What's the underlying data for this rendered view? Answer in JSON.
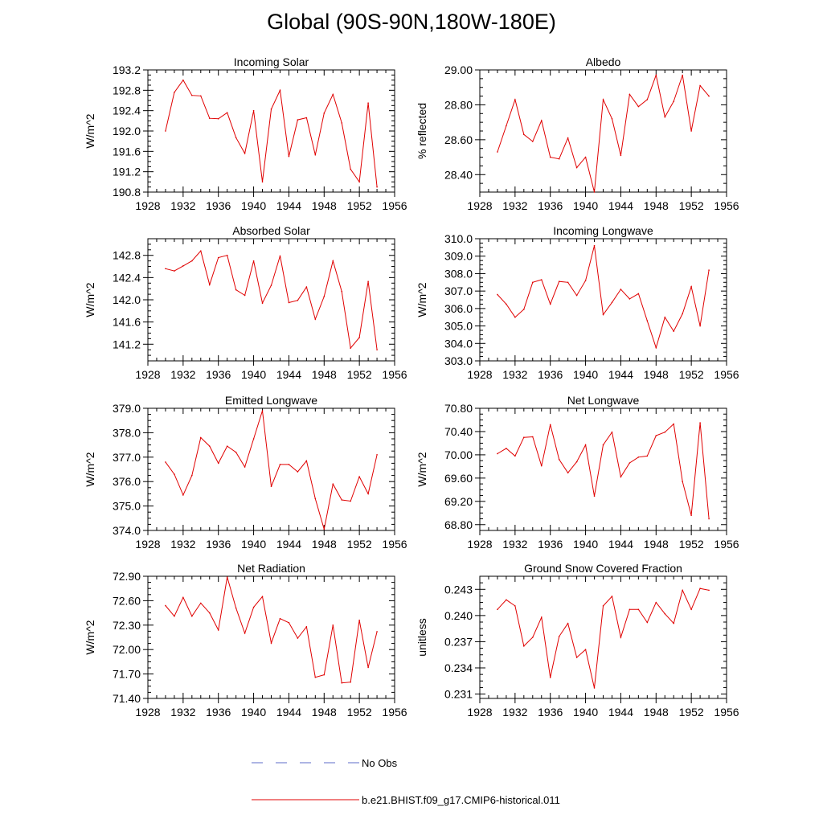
{
  "title": "Global (90S-90N,180W-180E)",
  "legend": {
    "obs_label": "No Obs",
    "obs_color": "#5c6bc8",
    "model_label": "b.e21.BHIST.f09_g17.CMIP6-historical.011",
    "model_color": "#e00000"
  },
  "chart_data": [
    {
      "type": "line",
      "title": "Incoming Solar",
      "ylabel": "W/m^2",
      "x": [
        1930,
        1931,
        1932,
        1933,
        1934,
        1935,
        1936,
        1937,
        1938,
        1939,
        1940,
        1941,
        1942,
        1943,
        1944,
        1945,
        1946,
        1947,
        1948,
        1949,
        1950,
        1951,
        1952,
        1953,
        1954
      ],
      "series": [
        {
          "values": [
            192.0,
            192.76,
            193.0,
            192.7,
            192.69,
            192.25,
            192.24,
            192.36,
            191.87,
            191.56,
            192.4,
            191.0,
            192.43,
            192.8,
            191.5,
            192.22,
            192.26,
            191.53,
            192.35,
            192.72,
            192.16,
            191.25,
            191.0,
            192.55,
            190.9
          ]
        }
      ],
      "xlim": [
        1928,
        1956
      ],
      "ylim": [
        190.8,
        193.2
      ],
      "xticks": [
        "1928",
        "1932",
        "1936",
        "1940",
        "1944",
        "1948",
        "1952",
        "1956"
      ],
      "yticks": [
        "190.8",
        "191.2",
        "191.6",
        "192.0",
        "192.4",
        "192.8",
        "193.2"
      ]
    },
    {
      "type": "line",
      "title": "Albedo",
      "ylabel": "% reflected",
      "x": [
        1930,
        1931,
        1932,
        1933,
        1934,
        1935,
        1936,
        1937,
        1938,
        1939,
        1940,
        1941,
        1942,
        1943,
        1944,
        1945,
        1946,
        1947,
        1948,
        1949,
        1950,
        1951,
        1952,
        1953,
        1954
      ],
      "series": [
        {
          "values": [
            28.53,
            28.68,
            28.83,
            28.63,
            28.59,
            28.71,
            28.5,
            28.49,
            28.61,
            28.44,
            28.5,
            28.3,
            28.83,
            28.72,
            28.51,
            28.86,
            28.79,
            28.83,
            28.97,
            28.73,
            28.82,
            28.97,
            28.65,
            28.91,
            28.85
          ]
        }
      ],
      "xlim": [
        1928,
        1956
      ],
      "ylim": [
        28.3,
        29.0
      ],
      "xticks": [
        "1928",
        "1932",
        "1936",
        "1940",
        "1944",
        "1948",
        "1952",
        "1956"
      ],
      "yticks": [
        "28.40",
        "28.60",
        "28.80",
        "29.00"
      ]
    },
    {
      "type": "line",
      "title": "Absorbed Solar",
      "ylabel": "W/m^2",
      "x": [
        1930,
        1931,
        1932,
        1933,
        1934,
        1935,
        1936,
        1937,
        1938,
        1939,
        1940,
        1941,
        1942,
        1943,
        1944,
        1945,
        1946,
        1947,
        1948,
        1949,
        1950,
        1951,
        1952,
        1953,
        1954
      ],
      "series": [
        {
          "values": [
            142.56,
            142.52,
            142.61,
            142.7,
            142.88,
            142.27,
            142.76,
            142.8,
            142.18,
            142.08,
            142.7,
            141.94,
            142.26,
            142.79,
            141.95,
            141.99,
            142.23,
            141.65,
            142.06,
            142.7,
            142.15,
            141.13,
            141.32,
            142.33,
            141.1
          ]
        }
      ],
      "xlim": [
        1928,
        1956
      ],
      "ylim": [
        140.9,
        143.1
      ],
      "xticks": [
        "1928",
        "1932",
        "1936",
        "1940",
        "1944",
        "1948",
        "1952",
        "1956"
      ],
      "yticks": [
        "141.2",
        "141.6",
        "142.0",
        "142.4",
        "142.8"
      ]
    },
    {
      "type": "line",
      "title": "Incoming Longwave",
      "ylabel": "W/m^2",
      "x": [
        1930,
        1931,
        1932,
        1933,
        1934,
        1935,
        1936,
        1937,
        1938,
        1939,
        1940,
        1941,
        1942,
        1943,
        1944,
        1945,
        1946,
        1947,
        1948,
        1949,
        1950,
        1951,
        1952,
        1953,
        1954
      ],
      "series": [
        {
          "values": [
            306.8,
            306.25,
            305.5,
            305.95,
            307.5,
            307.65,
            306.25,
            307.55,
            307.5,
            306.75,
            307.6,
            309.6,
            305.65,
            306.35,
            307.1,
            306.55,
            306.85,
            305.3,
            303.75,
            305.5,
            304.7,
            305.7,
            307.25,
            305.0,
            308.2
          ]
        }
      ],
      "xlim": [
        1928,
        1956
      ],
      "ylim": [
        303.0,
        310.0
      ],
      "xticks": [
        "1928",
        "1932",
        "1936",
        "1940",
        "1944",
        "1948",
        "1952",
        "1956"
      ],
      "yticks": [
        "303.0",
        "304.0",
        "305.0",
        "306.0",
        "307.0",
        "308.0",
        "309.0",
        "310.0"
      ]
    },
    {
      "type": "line",
      "title": "Emitted Longwave",
      "ylabel": "W/m^2",
      "x": [
        1930,
        1931,
        1932,
        1933,
        1934,
        1935,
        1936,
        1937,
        1938,
        1939,
        1940,
        1941,
        1942,
        1943,
        1944,
        1945,
        1946,
        1947,
        1948,
        1949,
        1950,
        1951,
        1952,
        1953,
        1954
      ],
      "series": [
        {
          "values": [
            376.8,
            376.3,
            375.45,
            376.25,
            377.8,
            377.45,
            376.75,
            377.45,
            377.2,
            376.6,
            377.75,
            378.9,
            375.8,
            376.7,
            376.7,
            376.4,
            376.85,
            375.3,
            374.05,
            375.9,
            375.25,
            375.2,
            376.2,
            375.5,
            377.1
          ]
        }
      ],
      "xlim": [
        1928,
        1956
      ],
      "ylim": [
        374.0,
        379.0
      ],
      "xticks": [
        "1928",
        "1932",
        "1936",
        "1940",
        "1944",
        "1948",
        "1952",
        "1956"
      ],
      "yticks": [
        "374.0",
        "375.0",
        "376.0",
        "377.0",
        "378.0",
        "379.0"
      ]
    },
    {
      "type": "line",
      "title": "Net Longwave",
      "ylabel": "W/m^2",
      "x": [
        1930,
        1931,
        1932,
        1933,
        1934,
        1935,
        1936,
        1937,
        1938,
        1939,
        1940,
        1941,
        1942,
        1943,
        1944,
        1945,
        1946,
        1947,
        1948,
        1949,
        1950,
        1951,
        1952,
        1953,
        1954
      ],
      "series": [
        {
          "values": [
            70.02,
            70.11,
            69.98,
            70.3,
            70.31,
            69.81,
            70.52,
            69.92,
            69.69,
            69.88,
            70.17,
            69.29,
            70.17,
            70.39,
            69.62,
            69.86,
            69.96,
            69.98,
            70.33,
            70.39,
            70.53,
            69.54,
            68.96,
            70.55,
            68.9
          ]
        }
      ],
      "xlim": [
        1928,
        1956
      ],
      "ylim": [
        68.7,
        70.8
      ],
      "xticks": [
        "1928",
        "1932",
        "1936",
        "1940",
        "1944",
        "1948",
        "1952",
        "1956"
      ],
      "yticks": [
        "68.80",
        "69.20",
        "69.60",
        "70.00",
        "70.40",
        "70.80"
      ]
    },
    {
      "type": "line",
      "title": "Net Radiation",
      "ylabel": "W/m^2",
      "x": [
        1930,
        1931,
        1932,
        1933,
        1934,
        1935,
        1936,
        1937,
        1938,
        1939,
        1940,
        1941,
        1942,
        1943,
        1944,
        1945,
        1946,
        1947,
        1948,
        1949,
        1950,
        1951,
        1952,
        1953,
        1954
      ],
      "series": [
        {
          "values": [
            72.54,
            72.41,
            72.64,
            72.41,
            72.57,
            72.45,
            72.24,
            72.89,
            72.51,
            72.2,
            72.52,
            72.65,
            72.08,
            72.38,
            72.33,
            72.14,
            72.28,
            71.66,
            71.69,
            72.3,
            71.59,
            71.6,
            72.36,
            71.78,
            72.22
          ]
        }
      ],
      "xlim": [
        1928,
        1956
      ],
      "ylim": [
        71.4,
        72.9
      ],
      "xticks": [
        "1928",
        "1932",
        "1936",
        "1940",
        "1944",
        "1948",
        "1952",
        "1956"
      ],
      "yticks": [
        "71.40",
        "71.70",
        "72.00",
        "72.30",
        "72.60",
        "72.90"
      ]
    },
    {
      "type": "line",
      "title": "Ground Snow Covered Fraction",
      "ylabel": "unitless",
      "x": [
        1930,
        1931,
        1932,
        1933,
        1934,
        1935,
        1936,
        1937,
        1938,
        1939,
        1940,
        1941,
        1942,
        1943,
        1944,
        1945,
        1946,
        1947,
        1948,
        1949,
        1950,
        1951,
        1952,
        1953,
        1954
      ],
      "series": [
        {
          "values": [
            0.2407,
            0.2418,
            0.2411,
            0.2365,
            0.2375,
            0.2398,
            0.2329,
            0.2376,
            0.2391,
            0.2352,
            0.2361,
            0.2317,
            0.2411,
            0.2422,
            0.2375,
            0.2407,
            0.2407,
            0.2392,
            0.2415,
            0.2402,
            0.2391,
            0.2429,
            0.2407,
            0.2431,
            0.2429
          ]
        }
      ],
      "xlim": [
        1928,
        1956
      ],
      "ylim": [
        0.2305,
        0.2445
      ],
      "xticks": [
        "1928",
        "1932",
        "1936",
        "1940",
        "1944",
        "1948",
        "1952",
        "1956"
      ],
      "yticks": [
        "0.231",
        "0.234",
        "0.237",
        "0.240",
        "0.243"
      ]
    }
  ]
}
